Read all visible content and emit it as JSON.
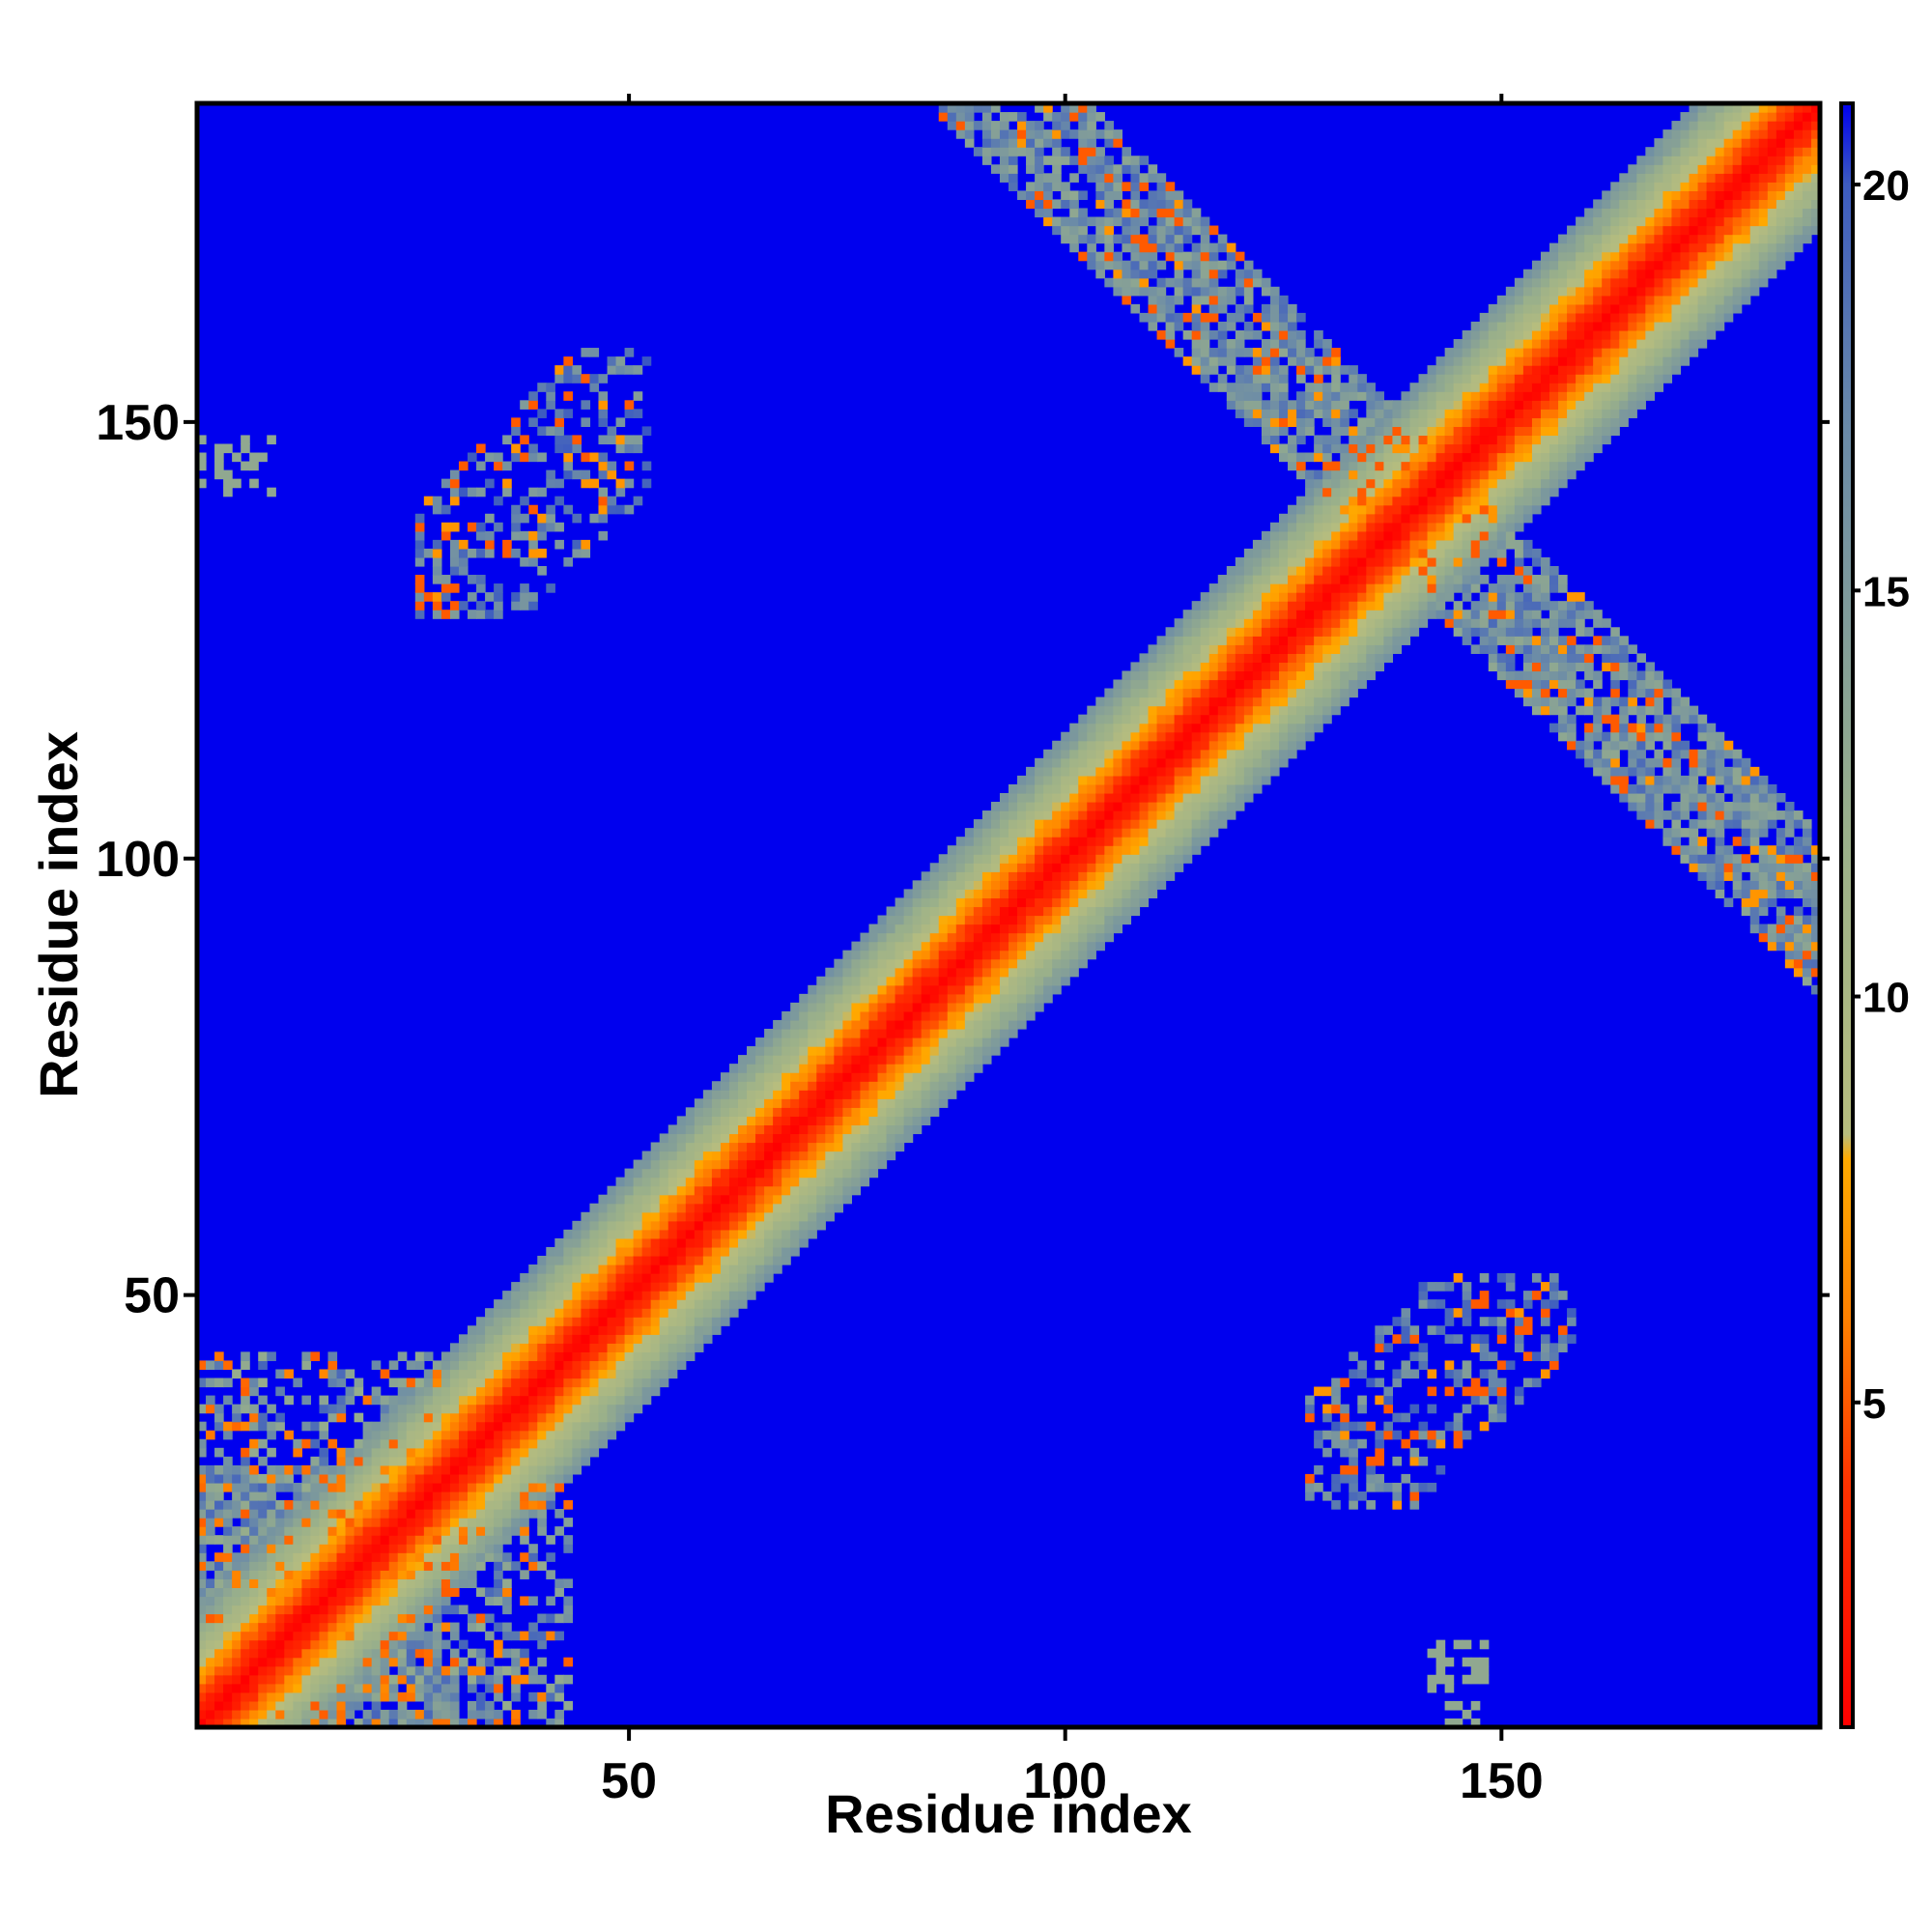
{
  "chart_data": {
    "type": "heatmap",
    "title": "",
    "xlabel": "Residue index",
    "ylabel": "Residue index",
    "xlim": [
      1,
      186
    ],
    "ylim": [
      1,
      186
    ],
    "x_ticks": [
      50,
      100,
      150
    ],
    "y_ticks": [
      50,
      100,
      150
    ],
    "x_tick_labels": [
      "50",
      "100",
      "150"
    ],
    "y_tick_labels": [
      "50",
      "100",
      "150"
    ],
    "colorbar": {
      "range": [
        1,
        21
      ],
      "ticks": [
        5,
        10,
        15,
        20
      ],
      "tick_labels": [
        "5",
        "10",
        "15",
        "20"
      ],
      "stops": [
        {
          "value": 1,
          "color": "#ff0000"
        },
        {
          "value": 4,
          "color": "#ff3300"
        },
        {
          "value": 6,
          "color": "#ff8000"
        },
        {
          "value": 8,
          "color": "#ffaa00"
        },
        {
          "value": 8.3,
          "color": "#b7bd7e"
        },
        {
          "value": 12,
          "color": "#9ab08a"
        },
        {
          "value": 17,
          "color": "#6a8aa8"
        },
        {
          "value": 20,
          "color": "#3d5cc0"
        },
        {
          "value": 21,
          "color": "#0000ee"
        }
      ]
    },
    "background_color": "#0000ee",
    "contact_regions": [
      {
        "region": "main diagonal",
        "x_range": [
          1,
          186
        ],
        "y_range": [
          1,
          186
        ],
        "min_value": 1
      },
      {
        "region": "N-terminal block",
        "x_range": [
          1,
          43
        ],
        "y_range": [
          1,
          43
        ],
        "min_value": 4
      },
      {
        "region": "anti-diagonal upper",
        "x_range": [
          85,
          140
        ],
        "y_range": [
          140,
          186
        ],
        "min_value": 5
      },
      {
        "region": "anti-diagonal lower",
        "x_range": [
          140,
          186
        ],
        "y_range": [
          85,
          140
        ],
        "min_value": 5
      },
      {
        "region": "patch upper-left",
        "x_range": [
          25,
          55
        ],
        "y_range": [
          125,
          165
        ],
        "min_value": 5
      },
      {
        "region": "patch lower-right",
        "x_range": [
          125,
          165
        ],
        "y_range": [
          25,
          55
        ],
        "min_value": 5
      },
      {
        "region": "patch left edge",
        "x_range": [
          1,
          10
        ],
        "y_range": [
          142,
          148
        ],
        "min_value": 12
      },
      {
        "region": "patch bottom edge",
        "x_range": [
          142,
          148
        ],
        "y_range": [
          1,
          10
        ],
        "min_value": 12
      }
    ]
  }
}
